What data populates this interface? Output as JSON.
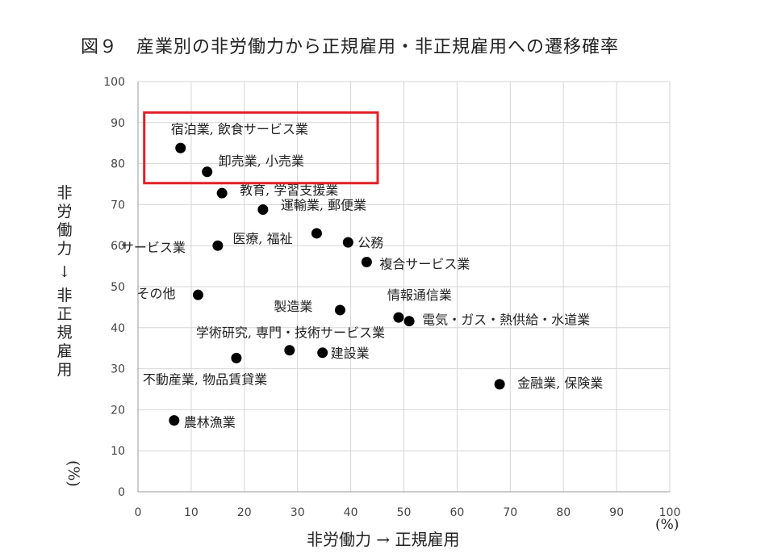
{
  "chart_data": {
    "type": "scatter",
    "title": "図９　産業別の非労働力から正規雇用・非正規雇用への遷移確率",
    "xlabel": "非労働力 → 正規雇用",
    "ylabel": "非労働力 → 非正規雇用",
    "x_unit": "(%)",
    "y_unit": "(%)",
    "xlim": [
      0,
      100
    ],
    "ylim": [
      0,
      100
    ],
    "xticks": [
      0,
      10,
      20,
      30,
      40,
      50,
      60,
      70,
      80,
      90,
      100
    ],
    "yticks": [
      0,
      10,
      20,
      30,
      40,
      50,
      60,
      70,
      80,
      90,
      100
    ],
    "grid": true,
    "highlight_box": {
      "color": "#e0202a",
      "items": [
        "宿泊業, 飲食サービス業",
        "卸売業, 小売業"
      ]
    },
    "points": [
      {
        "label": "宿泊業, 飲食サービス業",
        "x": 8.0,
        "y": 83.8
      },
      {
        "label": "卸売業, 小売業",
        "x": 13.0,
        "y": 78.0
      },
      {
        "label": "教育, 学習支援業",
        "x": 15.8,
        "y": 72.8
      },
      {
        "label": "運輸業, 郵便業",
        "x": 23.5,
        "y": 68.8
      },
      {
        "label": "医療, 福祉",
        "x": 33.6,
        "y": 63.0
      },
      {
        "label": "公務",
        "x": 39.5,
        "y": 60.8
      },
      {
        "label": "サービス業",
        "x": 15.0,
        "y": 60.0
      },
      {
        "label": "複合サービス業",
        "x": 43.0,
        "y": 56.0
      },
      {
        "label": "その他",
        "x": 11.3,
        "y": 48.0
      },
      {
        "label": "製造業",
        "x": 38.0,
        "y": 44.3
      },
      {
        "label": "情報通信業",
        "x": 49.0,
        "y": 42.5
      },
      {
        "label": "電気・ガス・熱供給・水道業",
        "x": 51.0,
        "y": 41.6
      },
      {
        "label": "学術研究, 専門・技術サービス業",
        "x": 28.5,
        "y": 34.5
      },
      {
        "label": "建設業",
        "x": 34.7,
        "y": 33.9
      },
      {
        "label": "不動産業, 物品賃貸業",
        "x": 18.5,
        "y": 32.6
      },
      {
        "label": "金融業, 保険業",
        "x": 68.0,
        "y": 26.2
      },
      {
        "label": "農林漁業",
        "x": 6.8,
        "y": 17.4
      }
    ]
  }
}
